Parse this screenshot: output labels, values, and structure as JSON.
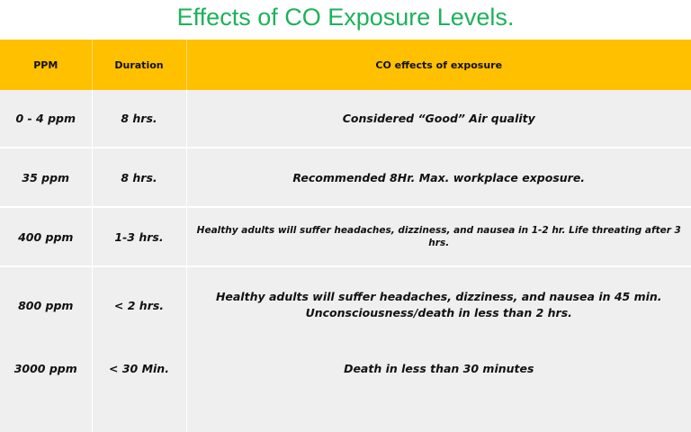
{
  "title": "Effects of CO Exposure Levels.",
  "colors": {
    "title": "#1db25a",
    "header_bg": "#ffc000",
    "row_bg": "#efefef"
  },
  "table": {
    "headers": [
      "PPM",
      "Duration",
      "CO effects of exposure"
    ],
    "rows": [
      {
        "ppm": "0 - 4 ppm",
        "duration": "8 hrs.",
        "effect": "Considered “Good” Air quality"
      },
      {
        "ppm": "35 ppm",
        "duration": "8 hrs.",
        "effect": "Recommended 8Hr. Max. workplace exposure."
      },
      {
        "ppm": "400 ppm",
        "duration": "1-3 hrs.",
        "effect": "Healthy adults will suffer headaches, dizziness, and nausea in 1-2 hr. Life threating after 3 hrs."
      },
      {
        "ppm": "800 ppm",
        "duration": "< 2 hrs.",
        "effect_line1": "Healthy adults will suffer headaches, dizziness, and nausea in 45 min.",
        "effect_line2": "Unconsciousness/death in less than 2 hrs."
      },
      {
        "ppm": "3000 ppm",
        "duration": "< 30 Min.",
        "effect": "Death in less than 30 minutes"
      }
    ]
  }
}
